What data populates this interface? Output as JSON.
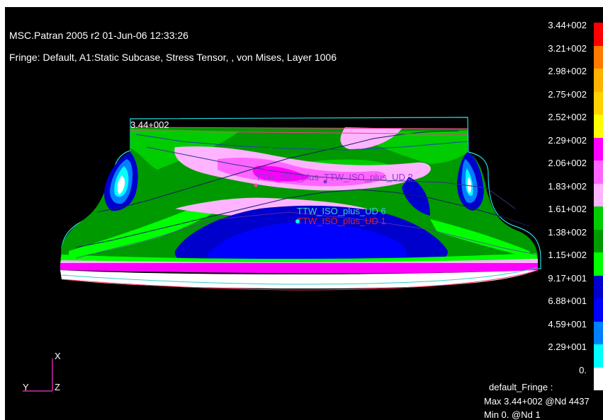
{
  "header": {
    "title": "MSC.Patran 2005 r2 01-Jun-06 12:33:26",
    "fringe_line": "Fringe: Default, A1:Static Subcase, Stress Tensor, , von Mises, Layer 1006"
  },
  "legend": {
    "values": [
      "3.44+002",
      "3.21+002",
      "2.98+002",
      "2.75+002",
      "2.52+002",
      "2.29+002",
      "2.06+002",
      "1.83+002",
      "1.61+002",
      "1.38+002",
      "1.15+002",
      "9.17+001",
      "6.88+001",
      "4.59+001",
      "2.29+001",
      "0."
    ],
    "colors": [
      "#ff0000",
      "#ff7a00",
      "#ffb300",
      "#ffd200",
      "#ffff00",
      "#ff00ff",
      "#ff66ff",
      "#ffb4ff",
      "#00cc00",
      "#009900",
      "#00ff00",
      "#0000cc",
      "#0000ff",
      "#0080ff",
      "#00ffff",
      "#ffffff"
    ]
  },
  "model": {
    "max_label": "3.44+002",
    "annotations": [
      "TTW_ISO_plus",
      "TTW_ISO_plus_UD 2",
      "TTW_ISO_plus_UD 6",
      "TTW_ISO_plus_UD 1"
    ]
  },
  "triad": {
    "x_label": "X",
    "y_label": "Y",
    "z_label": "Z"
  },
  "fringe_info": {
    "title": "default_Fringe :",
    "max": "Max 3.44+002 @Nd 4437",
    "min": "Min 0. @Nd 1"
  }
}
